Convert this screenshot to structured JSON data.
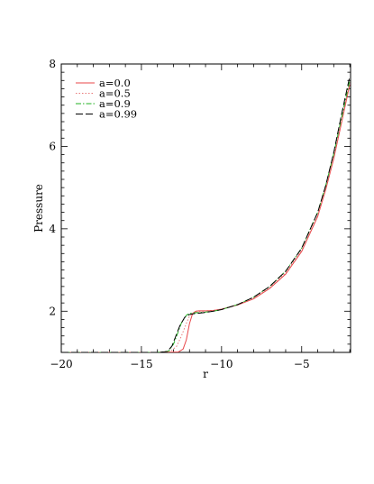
{
  "chart_data": {
    "type": "line",
    "title": "",
    "xlabel": "r",
    "ylabel": "Pressure",
    "xlim": [
      -20,
      -1.95
    ],
    "ylim": [
      1,
      8
    ],
    "xticks": [
      -20,
      -15,
      -10,
      -5
    ],
    "xtick_labels": [
      "−20",
      "−15",
      "−10",
      "−5"
    ],
    "yticks": [
      2,
      4,
      6,
      8
    ],
    "ytick_labels": [
      "2",
      "4",
      "6",
      "8"
    ],
    "grid": false,
    "legend_position": "top-left",
    "series": [
      {
        "name": "a=0.0",
        "color": "#e8474a",
        "dash": "solid",
        "x": [
          -20,
          -14,
          -12.7,
          -12.4,
          -12.2,
          -12.0,
          -11.8,
          -11.6,
          -11.4,
          -11.0,
          -10.5,
          -10.0,
          -9.0,
          -8.0,
          -7.0,
          -6.0,
          -5.0,
          -4.0,
          -3.5,
          -3.0,
          -2.5,
          -2.0
        ],
        "y": [
          1.0,
          1.0,
          1.01,
          1.08,
          1.3,
          1.7,
          1.95,
          2.0,
          2.01,
          2.01,
          2.02,
          2.05,
          2.15,
          2.3,
          2.55,
          2.9,
          3.45,
          4.3,
          4.95,
          5.7,
          6.6,
          7.5
        ]
      },
      {
        "name": "a=0.5",
        "color": "#e87a7a",
        "dash": "dotted",
        "x": [
          -20,
          -14,
          -13.2,
          -12.8,
          -12.5,
          -12.2,
          -12.0,
          -11.8,
          -11.5,
          -11.0,
          -10.5,
          -10.0,
          -9.0,
          -8.0,
          -7.0,
          -6.0,
          -5.0,
          -4.0,
          -3.5,
          -3.0,
          -2.5,
          -2.0
        ],
        "y": [
          1.0,
          1.0,
          1.02,
          1.15,
          1.4,
          1.7,
          1.88,
          1.95,
          1.98,
          2.0,
          2.02,
          2.05,
          2.16,
          2.32,
          2.57,
          2.93,
          3.48,
          4.33,
          4.98,
          5.75,
          6.65,
          7.55
        ]
      },
      {
        "name": "a=0.9",
        "color": "#22b022",
        "dash": "dash-dot",
        "x": [
          -20,
          -14,
          -13.3,
          -13.0,
          -12.8,
          -12.5,
          -12.2,
          -12.0,
          -11.7,
          -11.0,
          -10.5,
          -10.0,
          -9.0,
          -8.0,
          -7.0,
          -6.0,
          -5.0,
          -4.0,
          -3.5,
          -3.0,
          -2.5,
          -2.0
        ],
        "y": [
          1.0,
          1.0,
          1.03,
          1.2,
          1.4,
          1.72,
          1.9,
          1.95,
          1.96,
          1.98,
          2.0,
          2.04,
          2.16,
          2.34,
          2.6,
          2.97,
          3.53,
          4.4,
          5.05,
          5.82,
          6.72,
          7.6
        ]
      },
      {
        "name": "a=0.99",
        "color": "#000000",
        "dash": "long-dash",
        "x": [
          -20,
          -14,
          -13.4,
          -13.1,
          -12.9,
          -12.6,
          -12.3,
          -12.0,
          -11.7,
          -11.0,
          -10.5,
          -10.0,
          -9.0,
          -8.0,
          -7.0,
          -6.0,
          -5.0,
          -4.0,
          -3.5,
          -3.0,
          -2.5,
          -2.0
        ],
        "y": [
          1.0,
          1.0,
          1.02,
          1.15,
          1.35,
          1.65,
          1.85,
          1.92,
          1.94,
          1.97,
          2.0,
          2.04,
          2.16,
          2.34,
          2.6,
          2.97,
          3.53,
          4.4,
          5.05,
          5.85,
          6.8,
          7.7
        ]
      }
    ]
  }
}
